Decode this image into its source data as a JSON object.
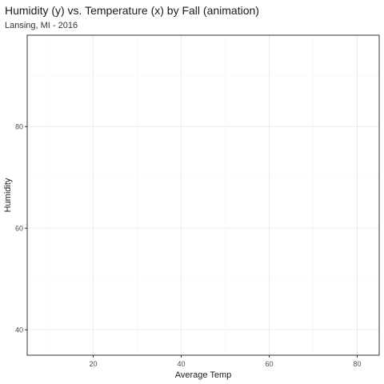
{
  "chart_data": {
    "type": "scatter",
    "title": "Humidity (y) vs. Temperature (x) by Fall (animation)",
    "subtitle": "Lansing, MI - 2016",
    "xlabel": "Average Temp",
    "ylabel": "Humidity",
    "xlim": [
      5,
      85
    ],
    "ylim": [
      35,
      98
    ],
    "x_ticks": [
      20,
      40,
      60,
      80
    ],
    "y_ticks": [
      40,
      60,
      80
    ],
    "x_tick_labels": [
      "20",
      "40",
      "60",
      "80"
    ],
    "y_tick_labels": [
      "40",
      "60",
      "80"
    ],
    "grid": true,
    "points": [],
    "colors": {
      "panel_border": "#333333",
      "grid_major": "#ebebeb",
      "grid_minor": "#f5f5f5",
      "background": "#ffffff"
    }
  }
}
